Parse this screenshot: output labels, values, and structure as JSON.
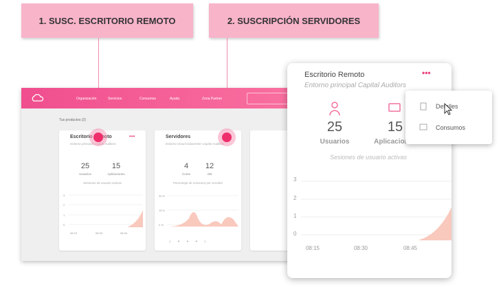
{
  "callouts": [
    "1. SUSC. ESCRITORIO REMOTO",
    "2. SUSCRIPCIÓN SERVIDORES"
  ],
  "nav": [
    "Organización",
    "Servicios",
    "Consumos",
    "Ayuda",
    "Zona Partner"
  ],
  "products_label": "Tus productos (2)",
  "cards": [
    {
      "title": "Escritorio Remoto",
      "subtitle": "Entorno principal Capital Auditors",
      "stats": [
        {
          "value": 25,
          "label": "Usuarios"
        },
        {
          "value": 15,
          "label": "Aplicaciones"
        }
      ],
      "chart_title": "Sesiones de usuario activas",
      "yticks": [
        3,
        2,
        1,
        0
      ],
      "xticks": [
        "08:15",
        "08:30",
        "08:45"
      ]
    },
    {
      "title": "Servidores",
      "subtitle": "Entorno Cloud Datacenter Capital Auditors",
      "stats": [
        {
          "value": 4,
          "label": "Cores"
        },
        {
          "value": 12,
          "label": "GB"
        }
      ],
      "chart_title": "Porcentaje de consumo por servidor",
      "yticks": [
        "30 %",
        "15 %",
        "0 %"
      ]
    }
  ],
  "zoom": {
    "title": "Escritorio Remoto",
    "subtitle": "Entorno principal Capital Auditors",
    "stats": [
      {
        "value": 25,
        "label": "Usuarios"
      },
      {
        "value": 15,
        "label": "Aplicaciones"
      }
    ],
    "chart_title": "Sesiones de usuario activas",
    "yticks": [
      3,
      2,
      1,
      0
    ],
    "xticks": [
      "08:15",
      "08:30",
      "08:45"
    ]
  },
  "menu": [
    "Detalles",
    "Consumos"
  ]
}
